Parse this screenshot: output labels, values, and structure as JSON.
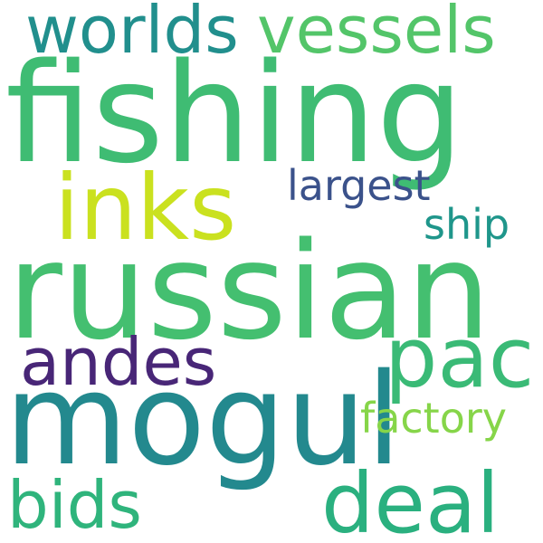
{
  "word_cloud": {
    "words": {
      "worlds": {
        "text": "worlds",
        "color": "#218f8d"
      },
      "vessels": {
        "text": "vessels",
        "color": "#53c569"
      },
      "fishing": {
        "text": "fishing",
        "color": "#3fbc73"
      },
      "inks": {
        "text": "inks",
        "color": "#cae11f"
      },
      "largest": {
        "text": "largest",
        "color": "#3b528b"
      },
      "ship": {
        "text": "ship",
        "color": "#1f968b"
      },
      "russian": {
        "text": "russian",
        "color": "#44bf70"
      },
      "pac": {
        "text": "pac",
        "color": "#3aba76"
      },
      "andes": {
        "text": "andes",
        "color": "#482677"
      },
      "mogul": {
        "text": "mogul",
        "color": "#23898e"
      },
      "factory": {
        "text": "factory",
        "color": "#86d549"
      },
      "deal": {
        "text": "deal",
        "color": "#2ab07f"
      },
      "bids": {
        "text": "bids",
        "color": "#2fb47c"
      }
    }
  }
}
